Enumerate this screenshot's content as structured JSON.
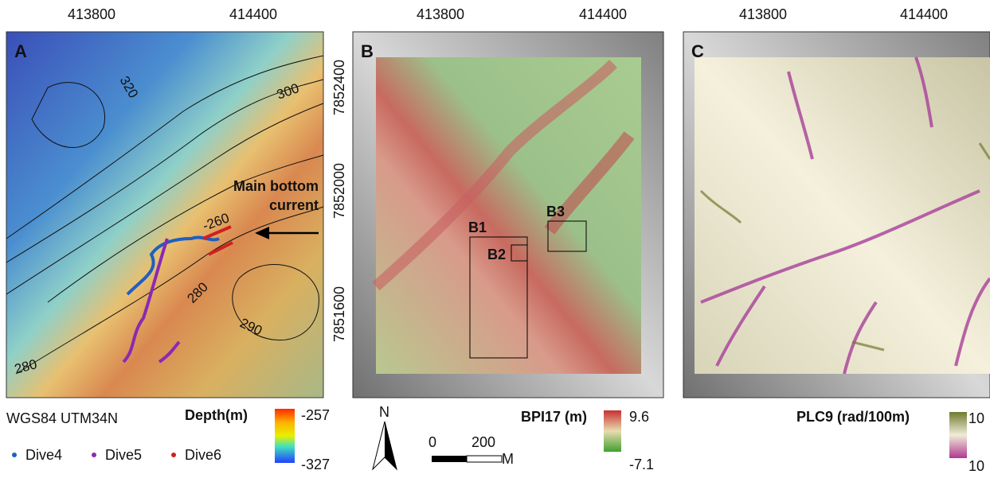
{
  "panels": [
    {
      "label": "A",
      "x_ticks": [
        "413800",
        "414400"
      ],
      "y_ticks": [
        "7852400",
        "7852000",
        "7851600"
      ],
      "contour_labels": [
        "320",
        "300",
        "-260",
        "280",
        "290",
        "280"
      ],
      "annotation": [
        "Main bottom",
        "current"
      ]
    },
    {
      "label": "B",
      "x_ticks": [
        "413800",
        "414400"
      ],
      "boxes": [
        "B1",
        "B2",
        "B3"
      ]
    },
    {
      "label": "C",
      "x_ticks": [
        "413800",
        "414400"
      ]
    }
  ],
  "legend": {
    "projection": "WGS84 UTM34N",
    "dives": [
      "Dive4",
      "Dive5",
      "Dive6"
    ],
    "depth": {
      "title": "Depth(m)",
      "max": "-257",
      "min": "-327"
    },
    "north": "N",
    "scale": [
      "0",
      "200",
      "M"
    ],
    "bpi": {
      "title": "BPI17 (m)",
      "max": "9.6",
      "min": "-7.1"
    },
    "plc": {
      "title": "PLC9 (rad/100m)",
      "max": "10",
      "min": "10"
    }
  }
}
